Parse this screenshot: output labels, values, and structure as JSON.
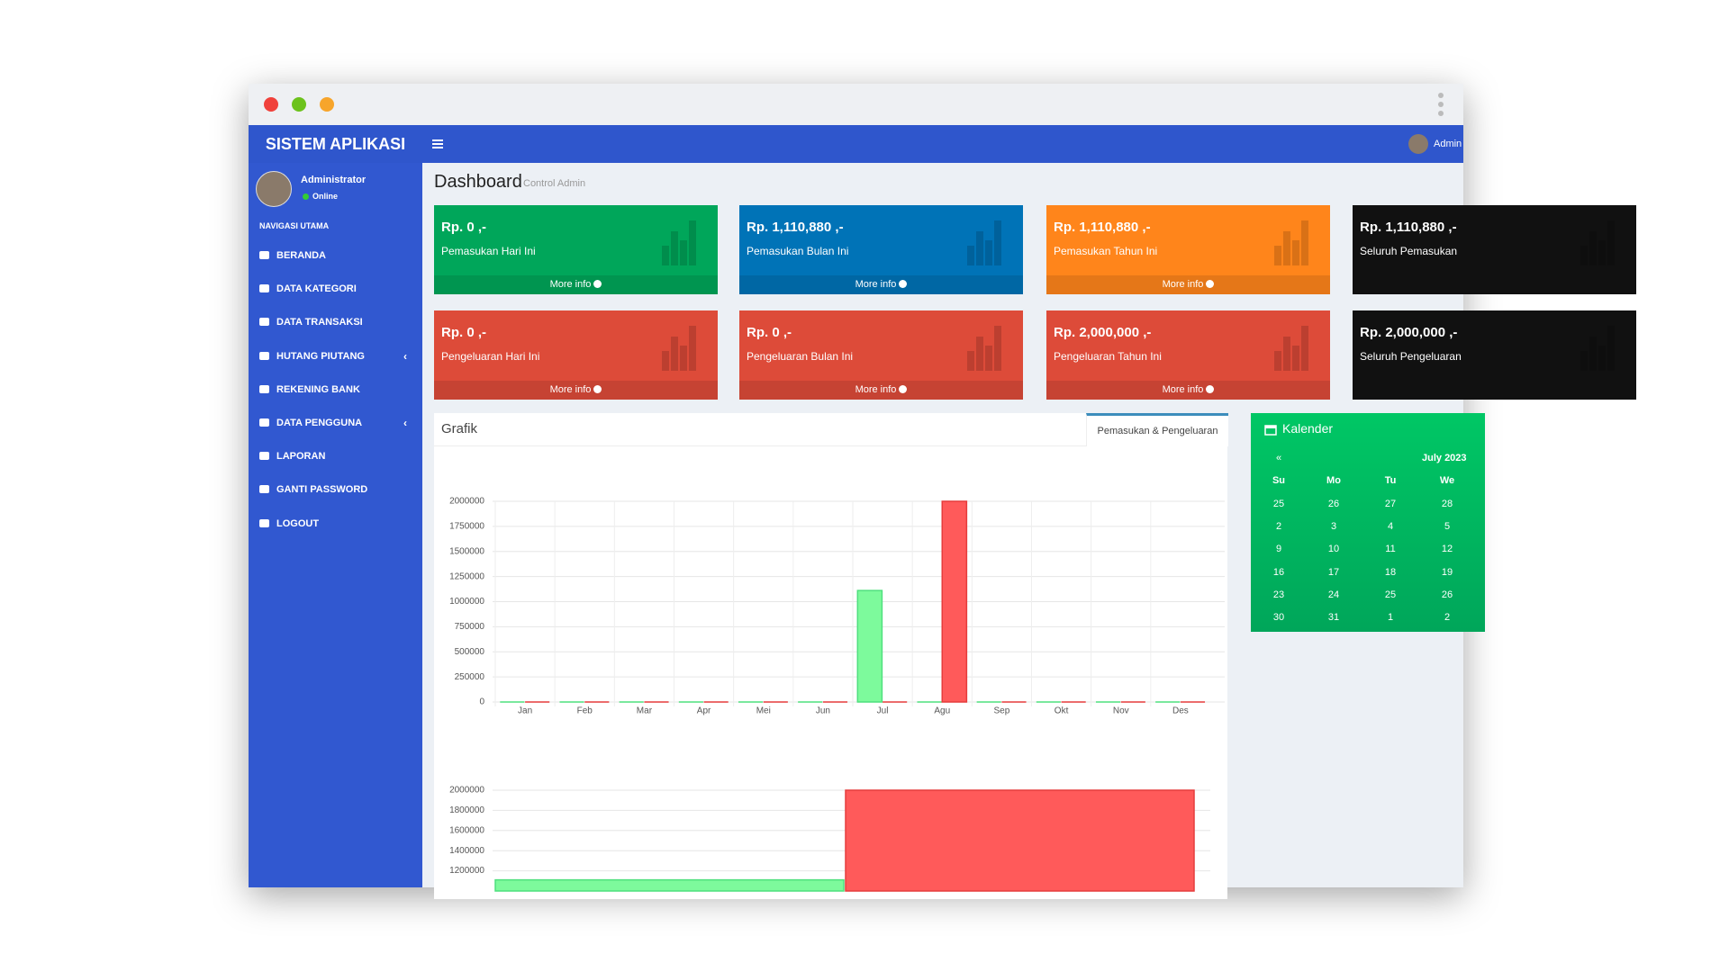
{
  "topbar": {
    "brand": "SISTEM APLIKASI",
    "user": "Admin"
  },
  "sidebar": {
    "user": "Administrator",
    "status": "Online",
    "section": "NAVIGASI UTAMA",
    "items": [
      {
        "label": "BERANDA"
      },
      {
        "label": "DATA KATEGORI"
      },
      {
        "label": "DATA TRANSAKSI"
      },
      {
        "label": "HUTANG PIUTANG",
        "submenu": true
      },
      {
        "label": "REKENING BANK"
      },
      {
        "label": "DATA PENGGUNA",
        "submenu": true
      },
      {
        "label": "LAPORAN"
      },
      {
        "label": "GANTI PASSWORD"
      },
      {
        "label": "LOGOUT"
      }
    ]
  },
  "header": {
    "title": "Dashboard",
    "subtitle": "Control Admin"
  },
  "more_info": "More info",
  "info_boxes": [
    {
      "value": "Rp. 0 ,-",
      "label": "Pemasukan Hari Ini",
      "color": "#00a65a",
      "link": true
    },
    {
      "value": "Rp. 1,110,880 ,-",
      "label": "Pemasukan Bulan Ini",
      "color": "#0073b7",
      "link": true
    },
    {
      "value": "Rp. 1,110,880 ,-",
      "label": "Pemasukan Tahun Ini",
      "color": "#ff851b",
      "link": true
    },
    {
      "value": "Rp. 1,110,880 ,-",
      "label": "Seluruh Pemasukan",
      "color": "#111111",
      "link": false
    },
    {
      "value": "Rp. 0 ,-",
      "label": "Pengeluaran Hari Ini",
      "color": "#dd4b39",
      "link": true
    },
    {
      "value": "Rp. 0 ,-",
      "label": "Pengeluaran Bulan Ini",
      "color": "#dd4b39",
      "link": true
    },
    {
      "value": "Rp. 2,000,000 ,-",
      "label": "Pengeluaran Tahun Ini",
      "color": "#dd4b39",
      "link": true
    },
    {
      "value": "Rp. 2,000,000 ,-",
      "label": "Seluruh Pengeluaran",
      "color": "#111111",
      "link": false
    }
  ],
  "grafik": {
    "title": "Grafik",
    "tab": "Pemasukan & Pengeluaran",
    "charts": [
      {
        "type": "bar",
        "categories": [
          "Jan",
          "Feb",
          "Mar",
          "Apr",
          "Mei",
          "Jun",
          "Jul",
          "Agu",
          "Sep",
          "Okt",
          "Nov",
          "Des"
        ],
        "series": [
          {
            "color": "#7dfa9c",
            "values": [
              0,
              0,
              0,
              0,
              0,
              0,
              1110880,
              0,
              0,
              0,
              0,
              0
            ]
          },
          {
            "color": "#ff5a5a",
            "values": [
              0,
              0,
              0,
              0,
              0,
              0,
              0,
              2000000,
              0,
              0,
              0,
              0
            ]
          }
        ],
        "ylim": [
          0,
          2000000
        ],
        "yticks": [
          0,
          250000,
          500000,
          750000,
          1000000,
          1250000,
          1500000,
          1750000,
          2000000
        ],
        "grid": true
      },
      {
        "type": "bar",
        "values": [
          1110880,
          2000000
        ],
        "colors": [
          "#7dfa9c",
          "#ff5a5a"
        ],
        "ylim": [
          1000000,
          2000000
        ],
        "yticks": [
          1200000,
          1400000,
          1600000,
          1800000,
          2000000
        ],
        "grid": true
      }
    ]
  },
  "kalender": {
    "title": "Kalender",
    "prev": "«",
    "month": "July 2023",
    "weekdays": [
      "Su",
      "Mo",
      "Tu",
      "We"
    ],
    "weeks": [
      [
        25,
        26,
        27,
        28
      ],
      [
        2,
        3,
        4,
        5
      ],
      [
        9,
        10,
        11,
        12
      ],
      [
        16,
        17,
        18,
        19
      ],
      [
        23,
        24,
        25,
        26
      ],
      [
        30,
        31,
        1,
        2
      ]
    ]
  }
}
